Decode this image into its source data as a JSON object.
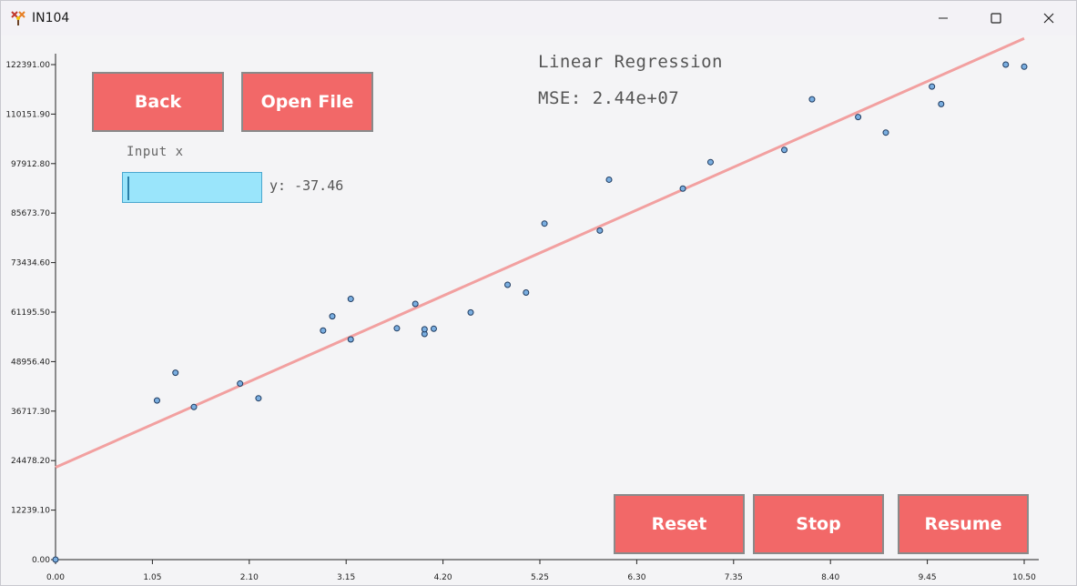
{
  "window": {
    "title": "IN104",
    "icon": "app-logo-icon",
    "controls": [
      "minimize-icon",
      "maximize-icon",
      "close-icon"
    ]
  },
  "buttons": {
    "back": "Back",
    "open_file": "Open File",
    "reset": "Reset",
    "stop": "Stop",
    "resume": "Resume"
  },
  "input": {
    "label": "Input x",
    "value": "",
    "output": "y: -37.46"
  },
  "model": {
    "name": "Linear Regression",
    "mse": "MSE: 2.44e+07"
  },
  "colors": {
    "button": "#f26868",
    "input_bg": "#9ae5fb",
    "regression_line": "#f2a0a0",
    "points": "#7aaee0"
  },
  "chart_data": {
    "type": "scatter",
    "x_ticks": [
      "0.00",
      "1.05",
      "2.10",
      "3.15",
      "4.20",
      "5.25",
      "6.30",
      "7.35",
      "8.40",
      "9.45",
      "10.50"
    ],
    "y_ticks": [
      "0.00",
      "12239.10",
      "24478.20",
      "36717.30",
      "48956.40",
      "61195.50",
      "73434.60",
      "85673.70",
      "97912.80",
      "110151.90",
      "122391.00"
    ],
    "xlim": [
      0,
      10.5
    ],
    "ylim": [
      0,
      122391
    ],
    "points": [
      {
        "x": 0.0,
        "y": 0
      },
      {
        "x": 1.1,
        "y": 39343
      },
      {
        "x": 1.3,
        "y": 46205
      },
      {
        "x": 1.5,
        "y": 37731
      },
      {
        "x": 2.0,
        "y": 43525
      },
      {
        "x": 2.2,
        "y": 39891
      },
      {
        "x": 2.9,
        "y": 56642
      },
      {
        "x": 3.0,
        "y": 60150
      },
      {
        "x": 3.2,
        "y": 54445
      },
      {
        "x": 3.2,
        "y": 64445
      },
      {
        "x": 3.7,
        "y": 57189
      },
      {
        "x": 3.9,
        "y": 63218
      },
      {
        "x": 4.0,
        "y": 55794
      },
      {
        "x": 4.0,
        "y": 56957
      },
      {
        "x": 4.1,
        "y": 57081
      },
      {
        "x": 4.5,
        "y": 61111
      },
      {
        "x": 4.9,
        "y": 67938
      },
      {
        "x": 5.1,
        "y": 66029
      },
      {
        "x": 5.3,
        "y": 83088
      },
      {
        "x": 5.9,
        "y": 81363
      },
      {
        "x": 6.0,
        "y": 93940
      },
      {
        "x": 6.8,
        "y": 91738
      },
      {
        "x": 7.1,
        "y": 98273
      },
      {
        "x": 7.9,
        "y": 101302
      },
      {
        "x": 8.2,
        "y": 113812
      },
      {
        "x": 8.7,
        "y": 109431
      },
      {
        "x": 9.0,
        "y": 105582
      },
      {
        "x": 9.5,
        "y": 116969
      },
      {
        "x": 9.6,
        "y": 112635
      },
      {
        "x": 10.3,
        "y": 122391
      },
      {
        "x": 10.5,
        "y": 121872
      }
    ],
    "line": {
      "intercept": 22800,
      "slope": 10100
    }
  }
}
